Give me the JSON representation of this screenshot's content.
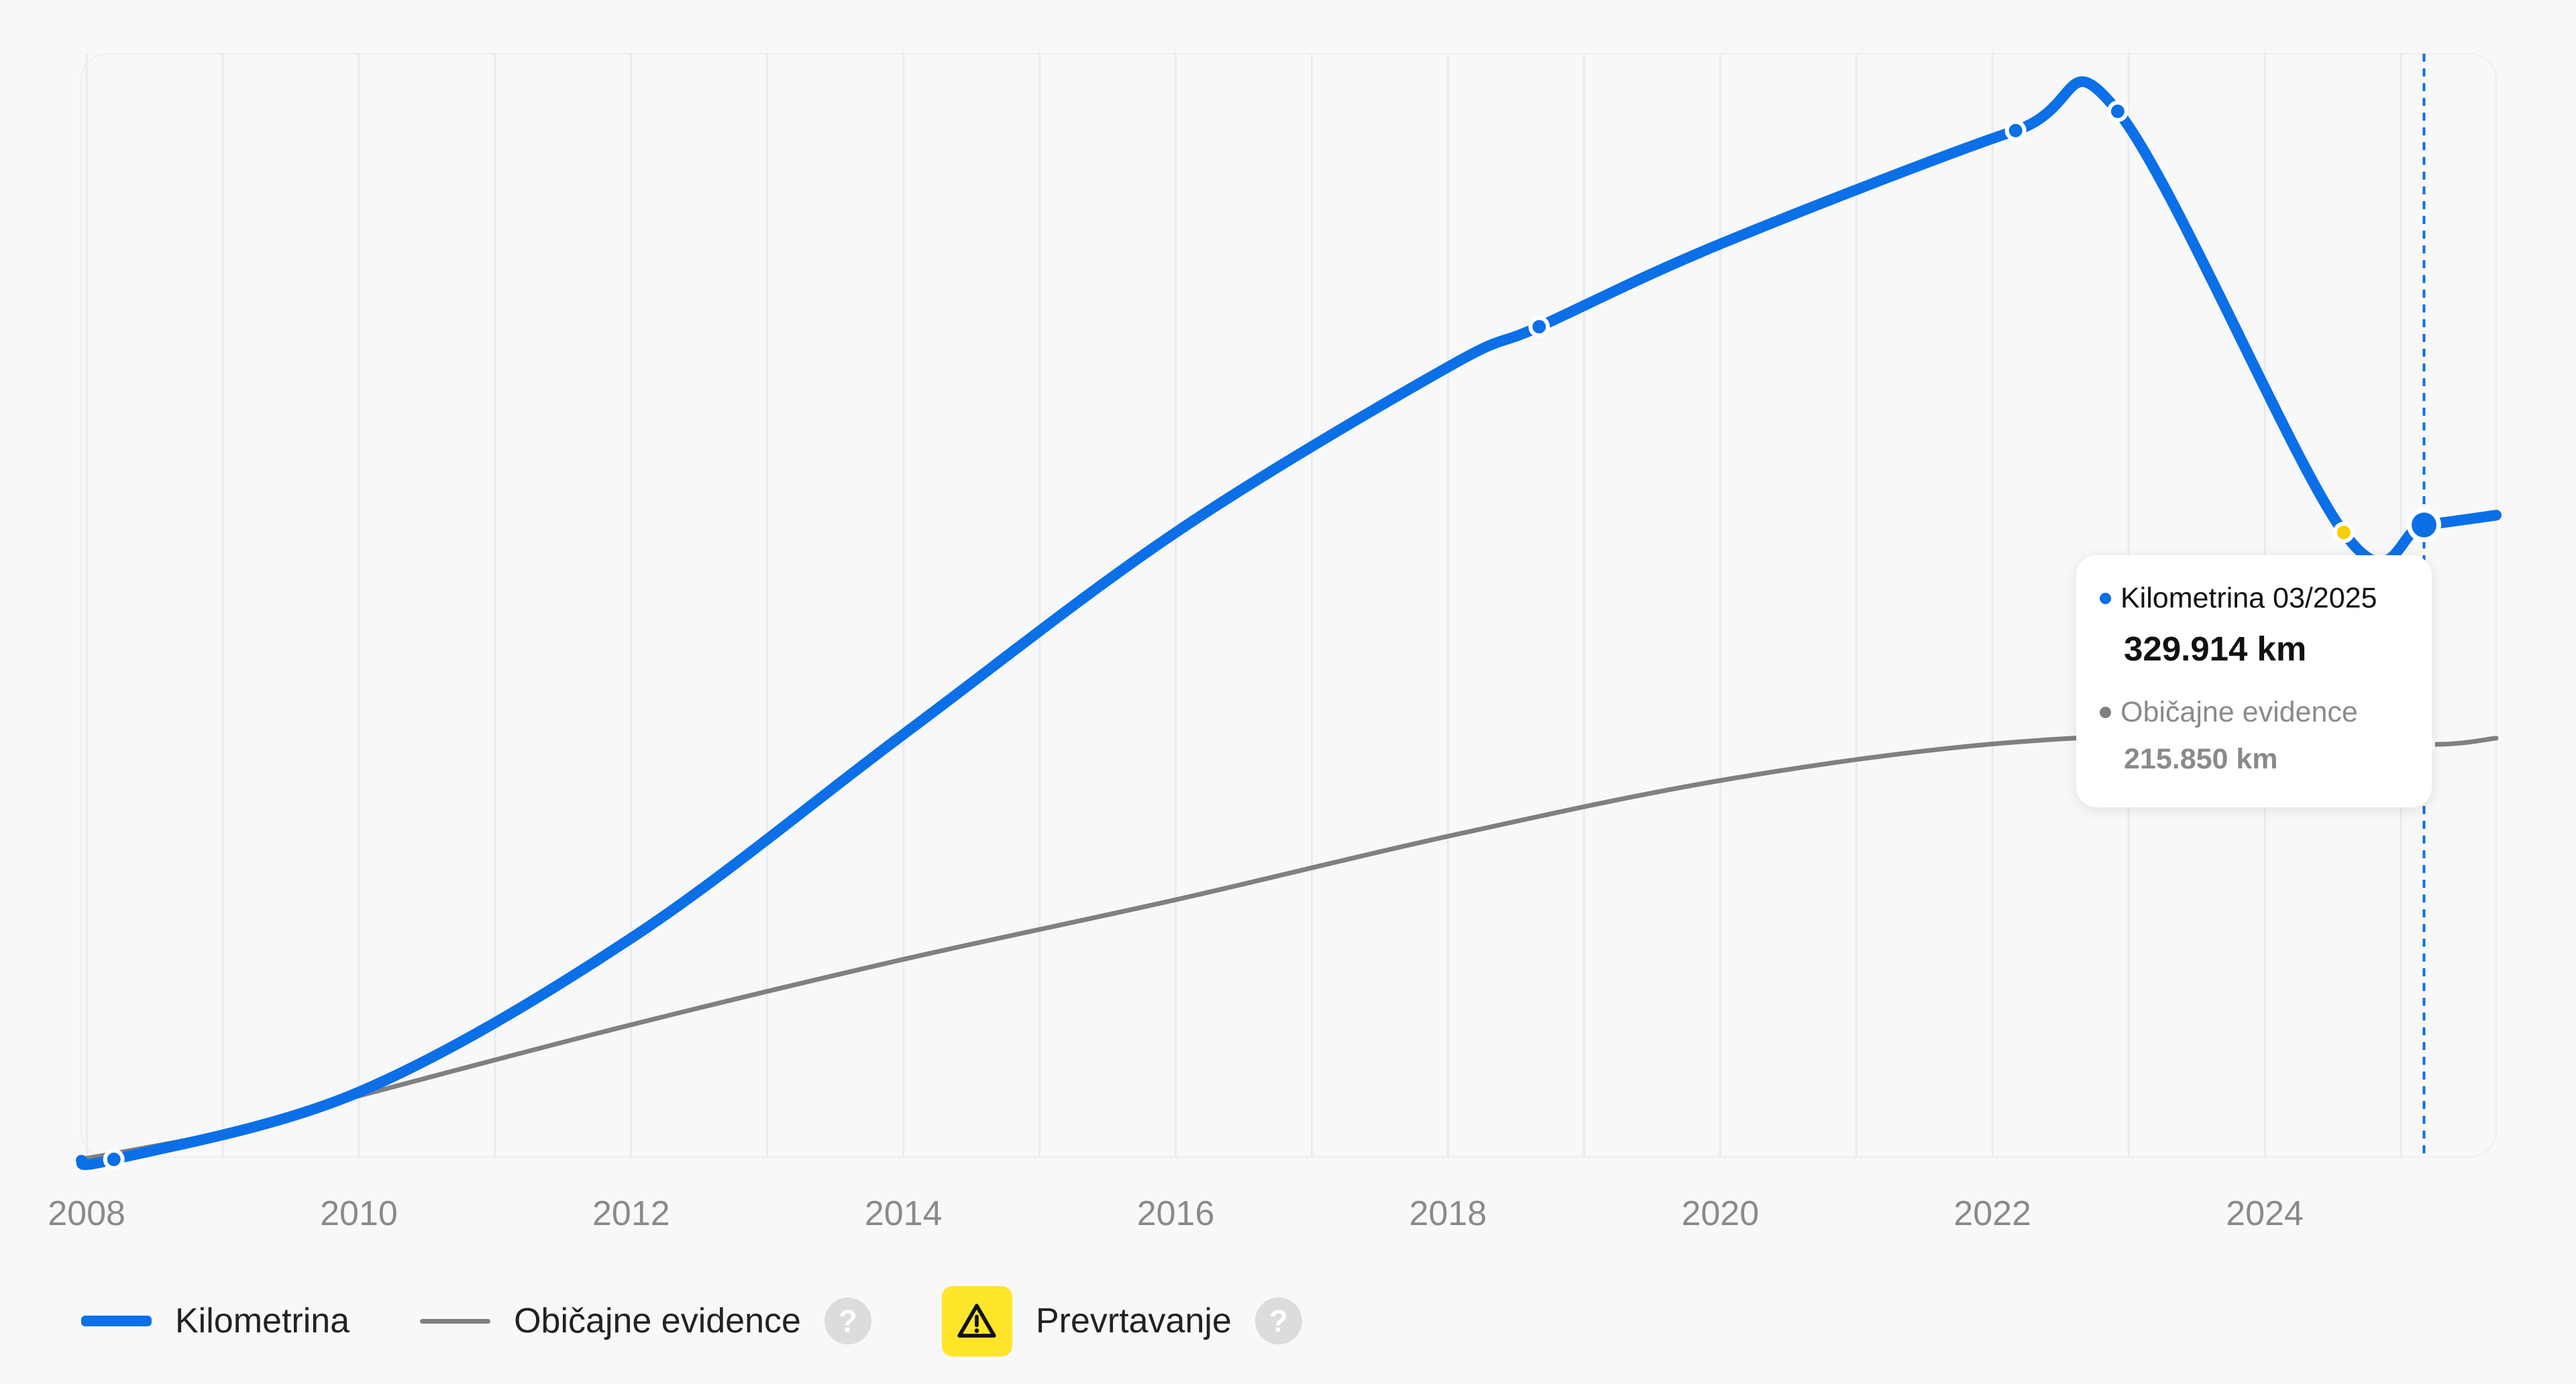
{
  "colors": {
    "mileage": "#0b6fe8",
    "typical": "#808080",
    "rollback_marker": "#f6cf08",
    "warning_bg": "#ffe52a",
    "grid": "#e6ecf5",
    "tick_text": "#8a8a8a"
  },
  "chart_data": {
    "type": "line",
    "x_unit": "year",
    "x_ticks": [
      "2008",
      "2010",
      "2012",
      "2014",
      "2016",
      "2018",
      "2020",
      "2022",
      "2024"
    ],
    "xlim": [
      2007.96,
      2025.7
    ],
    "ylim": [
      0,
      575000
    ],
    "grid": "vertical lines at yearly intervals",
    "series": [
      {
        "name": "Kilometrina",
        "color": "#0b6fe8",
        "smooth": true,
        "points": [
          {
            "x": 2007.96,
            "y": -500
          },
          {
            "x": 2008.2,
            "y": 0,
            "marker": true
          },
          {
            "x": 2010.0,
            "y": 35000
          },
          {
            "x": 2012.0,
            "y": 115000
          },
          {
            "x": 2014.0,
            "y": 221000
          },
          {
            "x": 2016.0,
            "y": 326000
          },
          {
            "x": 2018.0,
            "y": 412000
          },
          {
            "x": 2018.67,
            "y": 433000,
            "marker": true
          },
          {
            "x": 2020.0,
            "y": 476000
          },
          {
            "x": 2022.17,
            "y": 535000,
            "marker": true
          },
          {
            "x": 2022.92,
            "y": 545000,
            "marker": true
          },
          {
            "x": 2024.58,
            "y": 326000,
            "marker": true,
            "rollback": true
          },
          {
            "x": 2025.17,
            "y": 329914,
            "marker": true,
            "active": true
          },
          {
            "x": 2025.7,
            "y": 335000
          }
        ]
      },
      {
        "name": "Običajne evidence",
        "color": "#808080",
        "smooth": true,
        "points": [
          {
            "x": 2007.96,
            "y": 0
          },
          {
            "x": 2009.0,
            "y": 14000
          },
          {
            "x": 2010.0,
            "y": 33000
          },
          {
            "x": 2012.0,
            "y": 70000
          },
          {
            "x": 2014.0,
            "y": 104000
          },
          {
            "x": 2016.0,
            "y": 135000
          },
          {
            "x": 2018.0,
            "y": 168000
          },
          {
            "x": 2020.0,
            "y": 197000
          },
          {
            "x": 2022.0,
            "y": 216000
          },
          {
            "x": 2024.0,
            "y": 222000
          },
          {
            "x": 2025.17,
            "y": 215850,
            "marker": true,
            "active": true
          },
          {
            "x": 2025.7,
            "y": 219000
          }
        ]
      }
    ],
    "crosshair_x": 2025.17,
    "tooltip": {
      "series1_label": "Kilometrina 03/2025",
      "series1_value": "329.914 km",
      "series2_label": "Običajne evidence",
      "series2_value": "215.850 km"
    }
  },
  "legend": {
    "mileage_label": "Kilometrina",
    "typical_label": "Običajne evidence",
    "rollback_label": "Prevrtavanje",
    "help_glyph": "?",
    "icons": [
      "help-circle-icon",
      "warning-triangle-icon",
      "help-circle-icon"
    ]
  }
}
